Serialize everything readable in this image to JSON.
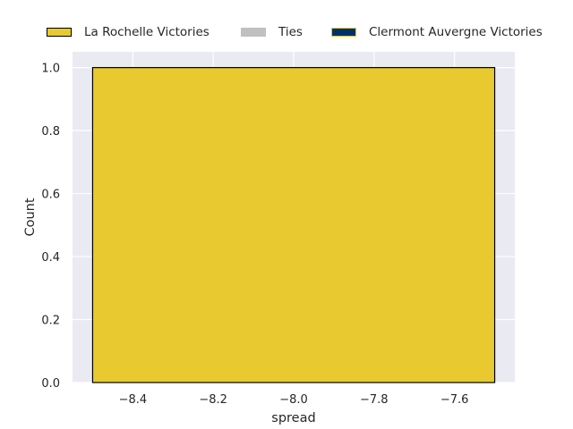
{
  "chart_data": {
    "type": "bar",
    "title": "",
    "xlabel": "spread",
    "ylabel": "Count",
    "xlim": [
      -8.55,
      -7.45
    ],
    "ylim": [
      0,
      1.05
    ],
    "x_ticks": [
      -8.4,
      -8.2,
      -8.0,
      -7.8,
      -7.6
    ],
    "x_tick_labels": [
      "−8.4",
      "−8.2",
      "−8.0",
      "−7.8",
      "−7.6"
    ],
    "y_ticks": [
      0.0,
      0.2,
      0.4,
      0.6,
      0.8,
      1.0
    ],
    "y_tick_labels": [
      "0.0",
      "0.2",
      "0.4",
      "0.6",
      "0.8",
      "1.0"
    ],
    "grid": true,
    "legend_position": "top-center",
    "legend": [
      {
        "label": "La Rochelle Victories",
        "fill": "#e8c930",
        "edge": "#000000"
      },
      {
        "label": "Ties",
        "fill": "#c0c0c0",
        "edge": "#c0c0c0"
      },
      {
        "label": "Clermont Auvergne Victories",
        "fill": "#00306e",
        "edge": "#e8c930"
      }
    ],
    "bars": [
      {
        "x_start": -8.5,
        "x_end": -7.5,
        "value": 1.0,
        "series": "La Rochelle Victories"
      }
    ],
    "colors": {
      "plot_background": "#eaeaf2",
      "grid": "#ffffff"
    }
  }
}
